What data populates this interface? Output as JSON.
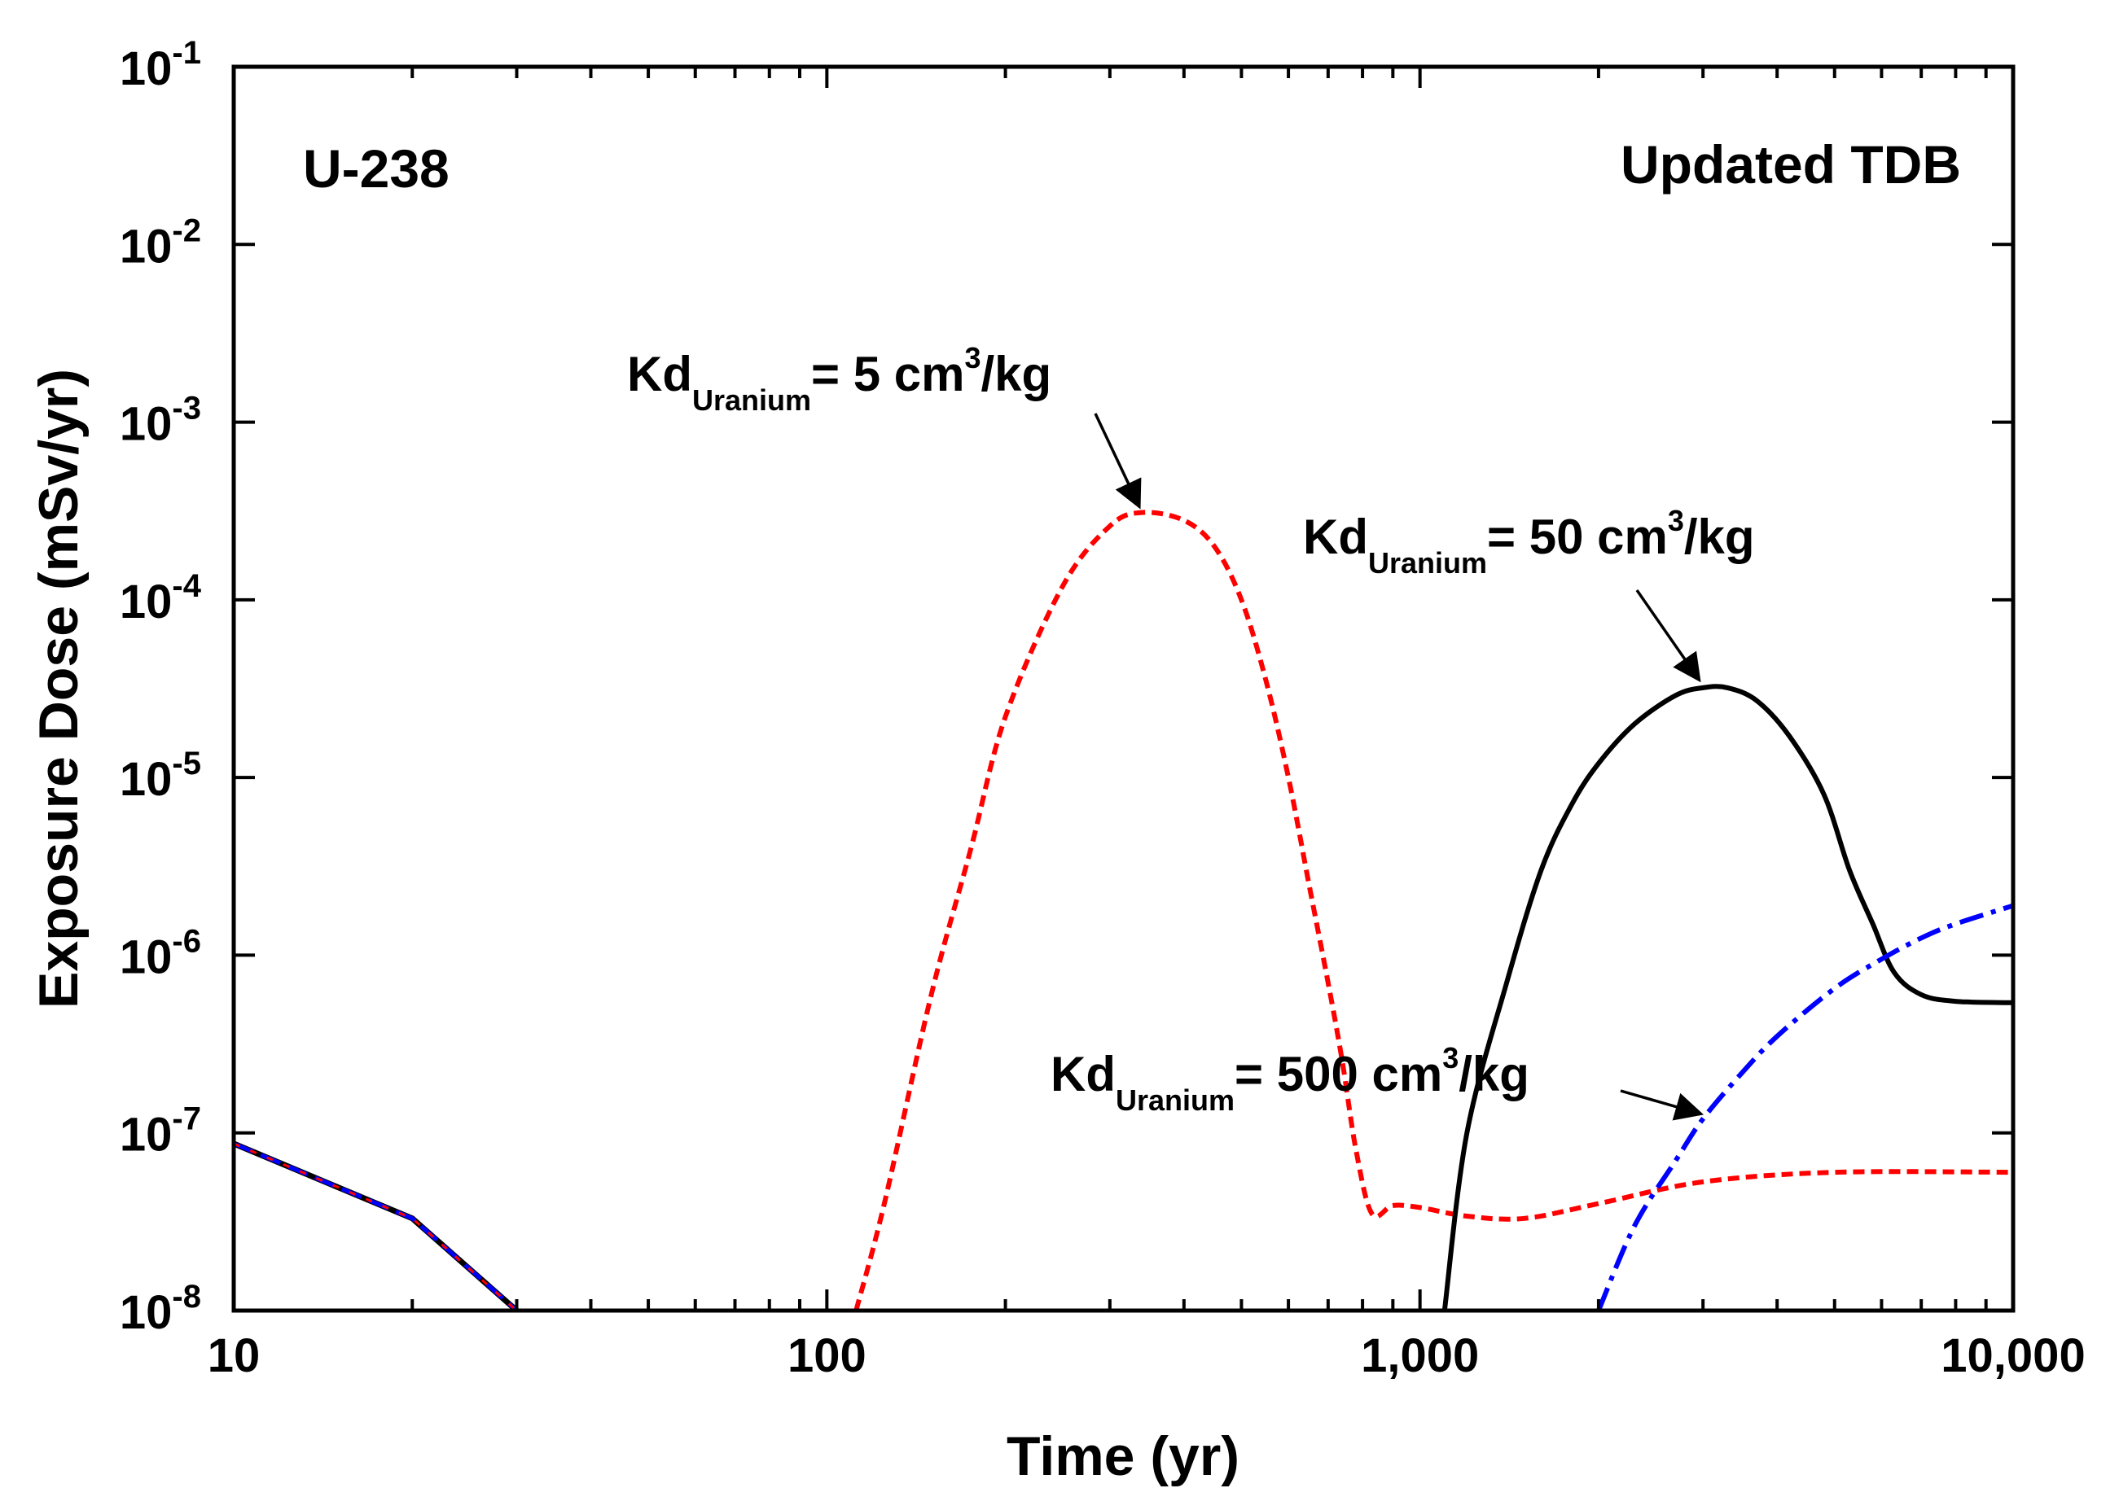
{
  "chart_data": {
    "type": "line",
    "title": "",
    "xlabel": "Time (yr)",
    "ylabel": "Exposure Dose (mSv/yr)",
    "xscale": "log",
    "yscale": "log",
    "xlim": [
      10,
      10000
    ],
    "ylim": [
      1e-08,
      0.1
    ],
    "grid": false,
    "x_ticks": [
      {
        "value": 10,
        "label": "10"
      },
      {
        "value": 100,
        "label": "100"
      },
      {
        "value": 1000,
        "label": "1,000"
      },
      {
        "value": 10000,
        "label": "10,000"
      }
    ],
    "y_ticks": [
      {
        "value": 1e-08,
        "base": "10",
        "exp": "-8"
      },
      {
        "value": 1e-07,
        "base": "10",
        "exp": "-7"
      },
      {
        "value": 1e-06,
        "base": "10",
        "exp": "-6"
      },
      {
        "value": 1e-05,
        "base": "10",
        "exp": "-5"
      },
      {
        "value": 0.0001,
        "base": "10",
        "exp": "-4"
      },
      {
        "value": 0.001,
        "base": "10",
        "exp": "-3"
      },
      {
        "value": 0.01,
        "base": "10",
        "exp": "-2"
      },
      {
        "value": 0.1,
        "base": "10",
        "exp": "-1"
      }
    ],
    "corner_labels": {
      "left": "U-238",
      "right": "Updated TDB"
    },
    "series": [
      {
        "name": "Kd_Uranium = 5 cm3/kg",
        "color": "#ff0000",
        "style": "dash",
        "points": [
          [
            112,
            1e-08
          ],
          [
            125,
            4e-08
          ],
          [
            150,
            6e-07
          ],
          [
            175,
            4e-06
          ],
          [
            200,
            2.2e-05
          ],
          [
            250,
            0.00012
          ],
          [
            300,
            0.00026
          ],
          [
            340,
            0.00031
          ],
          [
            400,
            0.00028
          ],
          [
            450,
            0.0002
          ],
          [
            500,
            0.0001
          ],
          [
            550,
            3.5e-05
          ],
          [
            600,
            1e-05
          ],
          [
            650,
            2.5e-06
          ],
          [
            700,
            7e-07
          ],
          [
            740,
            2.5e-07
          ],
          [
            780,
            8e-08
          ],
          [
            830,
            3.5e-08
          ],
          [
            900,
            3.9e-08
          ],
          [
            1000,
            3.8e-08
          ],
          [
            1200,
            3.4e-08
          ],
          [
            1500,
            3.3e-08
          ],
          [
            2000,
            4e-08
          ],
          [
            3000,
            5.3e-08
          ],
          [
            5000,
            6e-08
          ],
          [
            10000,
            6e-08
          ]
        ]
      },
      {
        "name": "Kd_Uranium = 50 cm3/kg",
        "color": "#000000",
        "style": "solid",
        "points": [
          [
            1100,
            1e-08
          ],
          [
            1200,
            1e-07
          ],
          [
            1400,
            7e-07
          ],
          [
            1600,
            3e-06
          ],
          [
            1800,
            7e-06
          ],
          [
            2000,
            1.2e-05
          ],
          [
            2300,
            2e-05
          ],
          [
            2700,
            2.9e-05
          ],
          [
            3000,
            3.2e-05
          ],
          [
            3300,
            3.2e-05
          ],
          [
            3700,
            2.7e-05
          ],
          [
            4200,
            1.7e-05
          ],
          [
            4800,
            8e-06
          ],
          [
            5300,
            3e-06
          ],
          [
            5800,
            1.5e-06
          ],
          [
            6300,
            8e-07
          ],
          [
            7000,
            6e-07
          ],
          [
            8000,
            5.5e-07
          ],
          [
            10000,
            5.4e-07
          ]
        ]
      },
      {
        "name": "Kd_Uranium = 500 cm3/kg",
        "color": "#0000ff",
        "style": "dashdot",
        "points": [
          [
            2000,
            1e-08
          ],
          [
            2300,
            3e-08
          ],
          [
            2700,
            7e-08
          ],
          [
            3000,
            1.2e-07
          ],
          [
            3500,
            2.2e-07
          ],
          [
            4000,
            3.5e-07
          ],
          [
            5000,
            6.5e-07
          ],
          [
            6000,
            9.5e-07
          ],
          [
            7000,
            1.25e-06
          ],
          [
            8000,
            1.5e-06
          ],
          [
            10000,
            1.9e-06
          ]
        ]
      },
      {
        "name": "early-time (overlapping series)",
        "color": "#000000",
        "style": "overlap",
        "points": [
          [
            10,
            8.7e-08
          ],
          [
            20,
            3.3e-08
          ],
          [
            30,
            1e-08
          ]
        ]
      }
    ],
    "annotations": [
      {
        "id": "ann-5",
        "prefix": "Kd",
        "sub": "Uranium",
        "value": "= 5 cm",
        "sup": "3",
        "suffix": "/kg",
        "arrow_to": [
          340,
          0.00031
        ]
      },
      {
        "id": "ann-50",
        "prefix": "Kd",
        "sub": "Uranium",
        "value": "= 50 cm",
        "sup": "3",
        "suffix": "/kg",
        "arrow_to": [
          3000,
          3.3e-05
        ]
      },
      {
        "id": "ann-500",
        "prefix": "Kd",
        "sub": "Uranium",
        "value": "= 500 cm",
        "sup": "3",
        "suffix": "/kg",
        "arrow_to": [
          3050,
          1.25e-07
        ]
      }
    ]
  }
}
